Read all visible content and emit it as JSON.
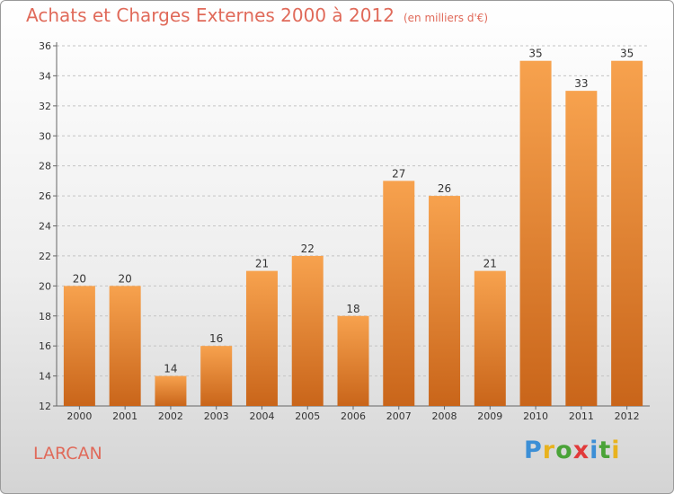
{
  "header": {
    "title": "Achats et Charges Externes 2000 à 2012",
    "unit": "(en milliers d'€)"
  },
  "footer": {
    "commune": "LARCAN",
    "logo": {
      "letters": [
        "P",
        "r",
        "o",
        "x",
        "i",
        "t",
        "i"
      ],
      "colors": [
        "#3c8fd6",
        "#e8b21e",
        "#4aa338",
        "#e13a3a",
        "#3c8fd6",
        "#4aa338",
        "#e8b21e"
      ]
    }
  },
  "colors": {
    "bar_light": "#f7a24e",
    "bar_dark": "#c9651a",
    "grid": "#c4c4c4",
    "axis": "#666666"
  },
  "chart_data": {
    "type": "bar",
    "title": "Achats et Charges Externes 2000 à 2012",
    "subtitle": "(en milliers d'€)",
    "categories": [
      "2000",
      "2001",
      "2002",
      "2003",
      "2004",
      "2005",
      "2006",
      "2007",
      "2008",
      "2009",
      "2010",
      "2011",
      "2012"
    ],
    "values": [
      20,
      20,
      14,
      16,
      21,
      22,
      18,
      27,
      26,
      21,
      35,
      33,
      35
    ],
    "ylim": [
      12,
      36
    ],
    "yticks": [
      12,
      14,
      16,
      18,
      20,
      22,
      24,
      26,
      28,
      30,
      32,
      34,
      36
    ],
    "grid": true,
    "legend": "none"
  }
}
